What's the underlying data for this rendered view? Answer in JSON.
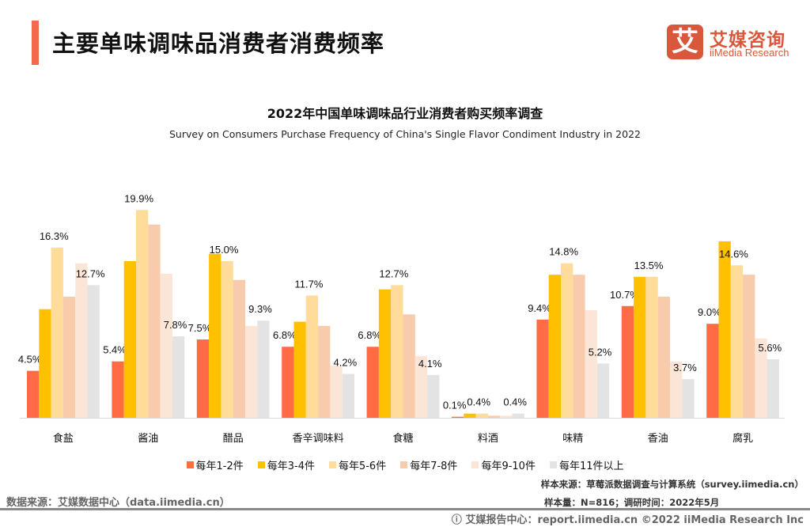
{
  "header": {
    "title": "主要单味调味品消费者消费频率"
  },
  "logo": {
    "mark": "艾",
    "cn": "艾媒咨询",
    "en": "iiMedia Research"
  },
  "chart_data": {
    "type": "bar",
    "title": "2022年中国单味调味品行业消费者购买频率调查",
    "subtitle": "Survey on Consumers Purchase Frequency of China's Single Flavor Condiment Industry in 2022",
    "categories": [
      "食盐",
      "酱油",
      "醋品",
      "香辛调味料",
      "食糖",
      "料酒",
      "味精",
      "香油",
      "腐乳"
    ],
    "unit": "%",
    "ylim": [
      0,
      21
    ],
    "grid": false,
    "legend_position": "bottom",
    "series": [
      {
        "name": "每年1-2件",
        "color": "#ff6b45",
        "values": [
          4.5,
          5.4,
          7.5,
          6.8,
          6.8,
          0.1,
          9.4,
          10.7,
          9.0
        ],
        "labeled": true
      },
      {
        "name": "每年3-4件",
        "color": "#ffc000",
        "values": [
          10.4,
          15.0,
          15.7,
          9.2,
          12.3,
          0.4,
          13.7,
          13.5,
          16.9
        ],
        "labeled": false
      },
      {
        "name": "每年5-6件",
        "color": "#ffdc9a",
        "values": [
          16.3,
          19.9,
          15.0,
          11.7,
          12.7,
          0.4,
          14.8,
          13.5,
          14.6
        ],
        "labeled": true
      },
      {
        "name": "每年7-8件",
        "color": "#f8cbad",
        "values": [
          11.6,
          18.5,
          13.2,
          8.8,
          9.9,
          0.2,
          13.7,
          11.6,
          13.7
        ],
        "labeled": false
      },
      {
        "name": "每年9-10件",
        "color": "#fbe5d6",
        "values": [
          14.8,
          13.8,
          8.8,
          5.0,
          5.9,
          0.2,
          10.3,
          5.4,
          7.6
        ],
        "labeled": false
      },
      {
        "name": "每年11件以上",
        "color": "#e3e3e3",
        "values": [
          12.7,
          7.8,
          9.3,
          4.2,
          4.1,
          0.4,
          5.2,
          3.7,
          5.6
        ],
        "labeled": true
      }
    ]
  },
  "notes": {
    "sample_source": "样本来源：草莓派数据调查与计算系统（survey.iimedia.cn）",
    "sample_size": "样本量：N=816；调研时间：2022年5月",
    "data_source": "数据来源：艾媒数据中心（data.iimedia.cn）",
    "footer": "ⓘ 艾媒报告中心：report.iimedia.cn    ©2022  iiMedia Research  Inc"
  }
}
